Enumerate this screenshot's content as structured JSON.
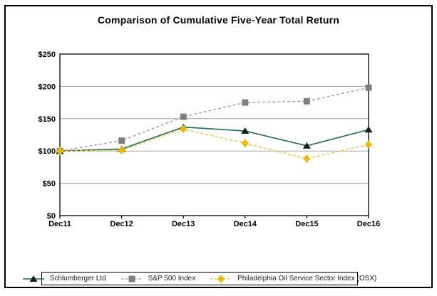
{
  "chart": {
    "title": "Comparison of Cumulative Five-Year Total Return"
  },
  "colors": {
    "grid": "#a0a0a0",
    "axis": "#000000",
    "background": "#ffffff"
  },
  "chart_data": {
    "type": "line",
    "title": "Comparison of Cumulative Five-Year Total Return",
    "categories": [
      "Dec11",
      "Dec12",
      "Dec13",
      "Dec14",
      "Dec15",
      "Dec16"
    ],
    "series": [
      {
        "name": "Schlumberger Ltd",
        "values": [
          100,
          103,
          137,
          131,
          108,
          133
        ],
        "line_color": "#1e6b50",
        "marker_color": "#10231a",
        "line_style": "solid",
        "marker": "triangle"
      },
      {
        "name": "S&P 500 Index",
        "values": [
          100,
          116,
          153,
          175,
          177,
          198
        ],
        "line_color": "#a9a9a9",
        "marker_color": "#7f7f7f",
        "line_style": "dashed",
        "marker": "square"
      },
      {
        "name": "Philadelphia Oil Service Sector Index (OSX)",
        "values": [
          100,
          101,
          134,
          112,
          88,
          110
        ],
        "line_color": "#edc845",
        "marker_color": "#f1b80c",
        "line_style": "dashed",
        "marker": "diamond"
      }
    ],
    "xlabel": "",
    "ylabel": "",
    "ylim": [
      0,
      250
    ],
    "y_tick_values": [
      0,
      50,
      100,
      150,
      200,
      250
    ],
    "y_tick_labels": [
      "$0",
      "$50",
      "$100",
      "$150",
      "$200",
      "$250"
    ],
    "grid": true,
    "legend_position": "bottom"
  }
}
